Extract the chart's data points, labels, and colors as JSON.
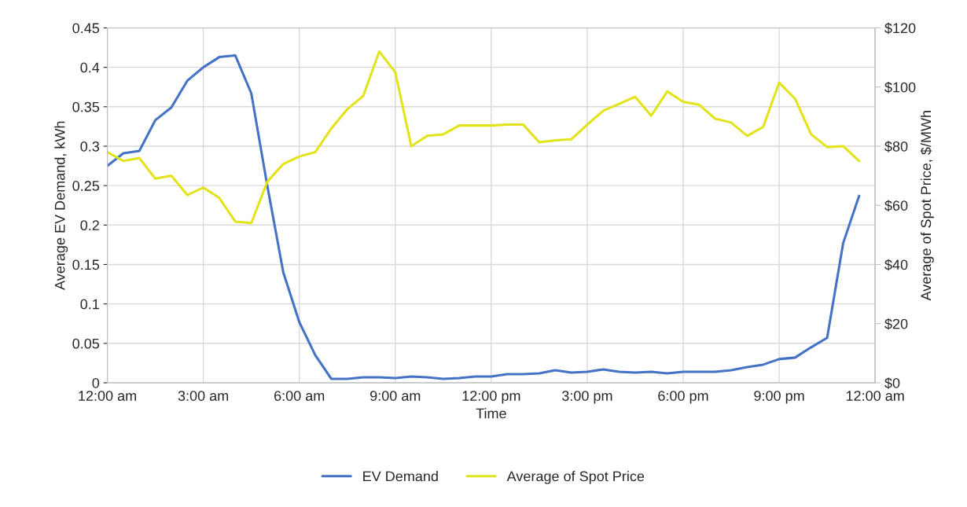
{
  "chart_data": {
    "type": "line",
    "xlabel": "Time",
    "ylabel": "Average EV Demand, kWh",
    "y2label": "Average of Spot Price, $/MWh",
    "x": [
      0,
      0.5,
      1,
      1.5,
      2,
      2.5,
      3,
      3.5,
      4,
      4.5,
      5,
      5.5,
      6,
      6.5,
      7,
      7.5,
      8,
      8.5,
      9,
      9.5,
      10,
      10.5,
      11,
      11.5,
      12,
      12.5,
      13,
      13.5,
      14,
      14.5,
      15,
      15.5,
      16,
      16.5,
      17,
      17.5,
      18,
      18.5,
      19,
      19.5,
      20,
      20.5,
      21,
      21.5,
      22,
      22.5,
      23,
      23.5
    ],
    "xlim": [
      0,
      24
    ],
    "xticks": [
      {
        "value": 0,
        "label": "12:00 am"
      },
      {
        "value": 3,
        "label": "3:00 am"
      },
      {
        "value": 6,
        "label": "6:00 am"
      },
      {
        "value": 9,
        "label": "9:00 am"
      },
      {
        "value": 12,
        "label": "12:00 pm"
      },
      {
        "value": 15,
        "label": "3:00 pm"
      },
      {
        "value": 18,
        "label": "6:00 pm"
      },
      {
        "value": 21,
        "label": "9:00 pm"
      },
      {
        "value": 24,
        "label": "12:00 am"
      }
    ],
    "ylim": [
      0,
      0.45
    ],
    "yticks": [
      0,
      0.05,
      0.1,
      0.15,
      0.2,
      0.25,
      0.3,
      0.35,
      0.4,
      0.45
    ],
    "y2lim": [
      0,
      120
    ],
    "y2ticks": [
      {
        "value": 0,
        "label": "$0"
      },
      {
        "value": 20,
        "label": "$20"
      },
      {
        "value": 40,
        "label": "$40"
      },
      {
        "value": 60,
        "label": "$60"
      },
      {
        "value": 80,
        "label": "$80"
      },
      {
        "value": 100,
        "label": "$100"
      },
      {
        "value": 120,
        "label": "$120"
      }
    ],
    "grid": true,
    "legend": "bottom",
    "marker": "none",
    "line_style": "solid",
    "series": [
      {
        "name": "EV Demand",
        "color": "#4472c4",
        "values": [
          0.275,
          0.291,
          0.294,
          0.333,
          0.349,
          0.383,
          0.4,
          0.413,
          0.415,
          0.367,
          0.25,
          0.14,
          0.077,
          0.035,
          0.005,
          0.005,
          0.007,
          0.007,
          0.006,
          0.008,
          0.007,
          0.005,
          0.006,
          0.008,
          0.008,
          0.011,
          0.011,
          0.012,
          0.016,
          0.013,
          0.014,
          0.017,
          0.014,
          0.013,
          0.014,
          0.012,
          0.014,
          0.014,
          0.014,
          0.016,
          0.02,
          0.023,
          0.03,
          0.032,
          0.045,
          0.057,
          0.177,
          0.237
        ]
      },
      {
        "name": "Average of Spot Price",
        "color": "#e2e31a",
        "axis": "y2",
        "values": [
          78,
          75,
          76,
          69,
          70,
          63.5,
          66,
          62.5,
          54.5,
          54,
          68,
          74,
          76.5,
          78,
          86,
          92.5,
          97,
          112,
          105,
          80,
          83.5,
          84,
          87,
          87,
          87,
          87.3,
          87.3,
          81.3,
          82,
          82.3,
          87.3,
          92,
          94.3,
          96.7,
          90.3,
          98.5,
          95,
          94,
          89.3,
          88,
          83.5,
          86.5,
          101.5,
          96,
          84,
          79.7,
          80,
          75
        ]
      }
    ]
  }
}
